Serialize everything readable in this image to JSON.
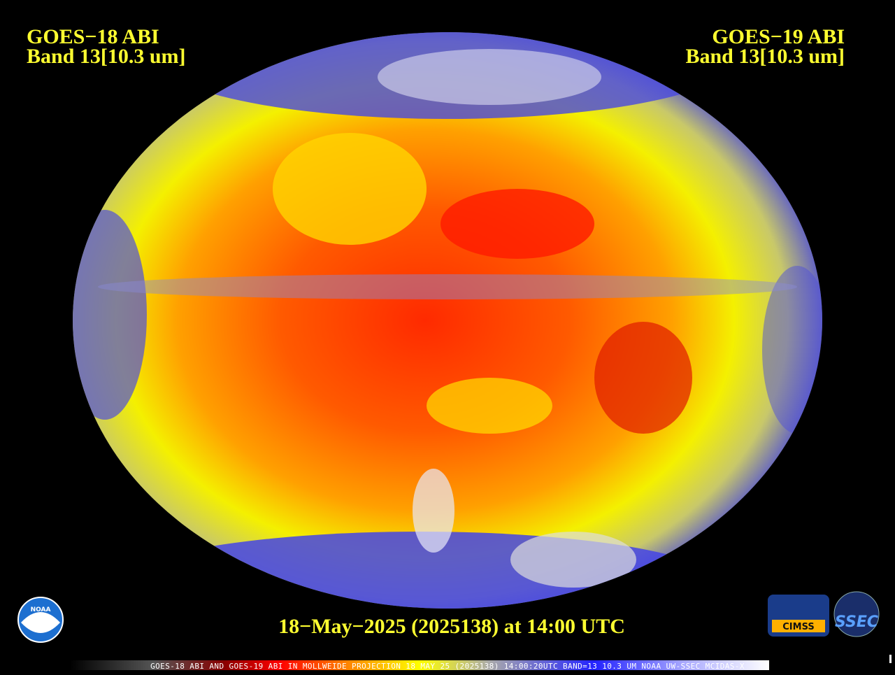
{
  "left_label": {
    "satellite": "GOES−18 ABI",
    "band": "Band 13[10.3 um]"
  },
  "right_label": {
    "satellite": "GOES−19 ABI",
    "band": "Band 13[10.3 um]"
  },
  "timestamp": "18−May−2025 (2025138) at 14:00 UTC",
  "footer": "GOES-18 ABI AND GOES-19 ABI IN MOLLWEIDE PROJECTION 18 MAY 25 (2025138) 14:00:20UTC BAND=13 10.3 UM NOAA UW-SSEC MCIDAS-X",
  "logos": {
    "noaa": "NOAA",
    "cimss": "CIMSS",
    "ssec": "SSEC"
  }
}
